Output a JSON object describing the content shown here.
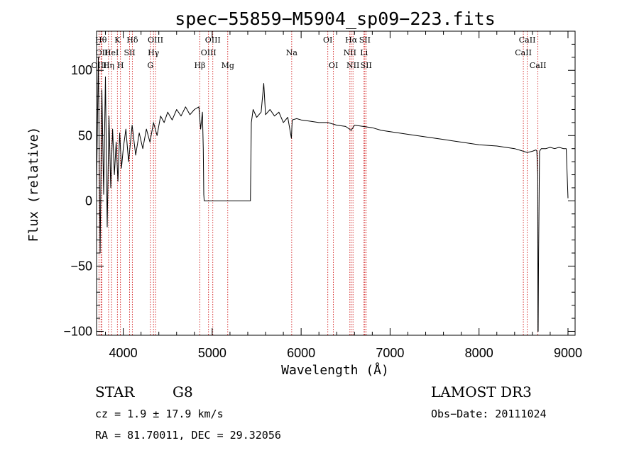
{
  "chart_data": {
    "type": "line",
    "title": "spec−55859−M5904_sp09−223.fits",
    "xlabel": "Wavelength (Å)",
    "ylabel": "Flux (relative)",
    "xlim": [
      3700,
      9080
    ],
    "ylim": [
      -103,
      130
    ],
    "x_ticks": [
      {
        "value": 4000,
        "label": "4000"
      },
      {
        "value": 5000,
        "label": "5000"
      },
      {
        "value": 6000,
        "label": "6000"
      },
      {
        "value": 7000,
        "label": "7000"
      },
      {
        "value": 8000,
        "label": "8000"
      },
      {
        "value": 9000,
        "label": "9000"
      }
    ],
    "y_ticks": [
      {
        "value": 100,
        "label": "100"
      },
      {
        "value": 50,
        "label": "50"
      },
      {
        "value": 0,
        "label": "0"
      },
      {
        "value": -50,
        "label": "−50"
      },
      {
        "value": -100,
        "label": "−100"
      }
    ],
    "series": [
      {
        "name": "spectrum",
        "x": [
          3700,
          3720,
          3740,
          3760,
          3780,
          3800,
          3820,
          3840,
          3860,
          3880,
          3900,
          3920,
          3940,
          3960,
          3980,
          4000,
          4030,
          4060,
          4100,
          4140,
          4180,
          4220,
          4260,
          4300,
          4340,
          4380,
          4420,
          4460,
          4500,
          4550,
          4600,
          4650,
          4700,
          4750,
          4800,
          4850,
          4870,
          4890,
          4900,
          4905,
          4910,
          4920,
          5000,
          5100,
          5200,
          5300,
          5400,
          5430,
          5440,
          5460,
          5500,
          5550,
          5580,
          5600,
          5650,
          5700,
          5750,
          5800,
          5850,
          5890,
          5895,
          5900,
          5950,
          6000,
          6100,
          6200,
          6300,
          6400,
          6500,
          6563,
          6600,
          6700,
          6800,
          6900,
          7000,
          7200,
          7400,
          7600,
          7800,
          8000,
          8200,
          8400,
          8498,
          8542,
          8600,
          8640,
          8650,
          8660,
          8662,
          8665,
          8670,
          8680,
          8700,
          8750,
          8800,
          8850,
          8900,
          8950,
          8980,
          9000
        ],
        "y": [
          10,
          110,
          -40,
          85,
          5,
          95,
          -20,
          65,
          10,
          55,
          20,
          45,
          15,
          52,
          25,
          40,
          55,
          30,
          58,
          35,
          52,
          40,
          55,
          45,
          60,
          50,
          65,
          60,
          68,
          62,
          70,
          65,
          72,
          66,
          70,
          72,
          55,
          68,
          40,
          5,
          0,
          0,
          0,
          0,
          0,
          0,
          0,
          0,
          60,
          70,
          64,
          68,
          90,
          66,
          70,
          65,
          68,
          60,
          64,
          48,
          55,
          62,
          63,
          62,
          61,
          60,
          60,
          58,
          57,
          54,
          58,
          57,
          56,
          54,
          53,
          51,
          49,
          47,
          45,
          43,
          42,
          40,
          38,
          37,
          38,
          39,
          38,
          20,
          -100,
          -100,
          -40,
          38,
          40,
          40,
          41,
          40,
          41,
          40,
          40,
          2
        ]
      }
    ],
    "emission_lines": [
      {
        "name": "O III",
        "label": "OIII",
        "wavelength": 3727,
        "row": 2
      },
      {
        "name": "H theta",
        "label": "Hθ",
        "wavelength": 3750,
        "row": 0
      },
      {
        "name": "O II",
        "label": "OII",
        "wavelength": 3760,
        "row": 1
      },
      {
        "name": "H eta",
        "label": "Hη",
        "wavelength": 3835,
        "row": 2
      },
      {
        "name": "He I",
        "label": "HeI",
        "wavelength": 3869,
        "row": 1
      },
      {
        "name": "K",
        "label": "K",
        "wavelength": 3934,
        "row": 0
      },
      {
        "name": "H",
        "label": "H",
        "wavelength": 3969,
        "row": 2
      },
      {
        "name": "S II",
        "label": "SII",
        "wavelength": 4072,
        "row": 1
      },
      {
        "name": "H delta",
        "label": "Hδ",
        "wavelength": 4102,
        "row": 0
      },
      {
        "name": "G",
        "label": "G",
        "wavelength": 4305,
        "row": 2
      },
      {
        "name": "H gamma",
        "label": "Hγ",
        "wavelength": 4340,
        "row": 1
      },
      {
        "name": "O III 4363",
        "label": "OIII",
        "wavelength": 4363,
        "row": 0
      },
      {
        "name": "H beta",
        "label": "Hβ",
        "wavelength": 4861,
        "row": 2
      },
      {
        "name": "O III 4959",
        "label": "OIII",
        "wavelength": 4959,
        "row": 1
      },
      {
        "name": "O III 5007",
        "label": "OIII",
        "wavelength": 5007,
        "row": 0
      },
      {
        "name": "Mg",
        "label": "Mg",
        "wavelength": 5175,
        "row": 2
      },
      {
        "name": "Na",
        "label": "Na",
        "wavelength": 5894,
        "row": 1
      },
      {
        "name": "O I 6300",
        "label": "OI",
        "wavelength": 6300,
        "row": 0
      },
      {
        "name": "O I 6363",
        "label": "OI",
        "wavelength": 6363,
        "row": 2
      },
      {
        "name": "N II 6548",
        "label": "NII",
        "wavelength": 6548,
        "row": 1
      },
      {
        "name": "H alpha",
        "label": "Hα",
        "wavelength": 6563,
        "row": 0
      },
      {
        "name": "N II 6583",
        "label": "NII",
        "wavelength": 6583,
        "row": 2
      },
      {
        "name": "Li",
        "label": "Li",
        "wavelength": 6707,
        "row": 1
      },
      {
        "name": "S II 6716",
        "label": "SII",
        "wavelength": 6716,
        "row": 0
      },
      {
        "name": "S II 6731",
        "label": "SII",
        "wavelength": 6731,
        "row": 2
      },
      {
        "name": "Ca II 8498",
        "label": "CaII",
        "wavelength": 8498,
        "row": 1
      },
      {
        "name": "Ca II 8542",
        "label": "CaII",
        "wavelength": 8542,
        "row": 0
      },
      {
        "name": "Ca II 8662",
        "label": "CaII",
        "wavelength": 8662,
        "row": 2
      }
    ]
  },
  "info": {
    "object_class": "STAR",
    "subclass": "G8",
    "survey": "LAMOST DR3",
    "redshift": "cz = 1.9 ± 17.9 km/s",
    "obs_date": "Obs−Date: 20111024",
    "coords": "RA =  81.70011, DEC =  29.32056"
  },
  "colors": {
    "line_marker": "#cc0000",
    "spectrum": "#000000",
    "axes": "#000000"
  }
}
